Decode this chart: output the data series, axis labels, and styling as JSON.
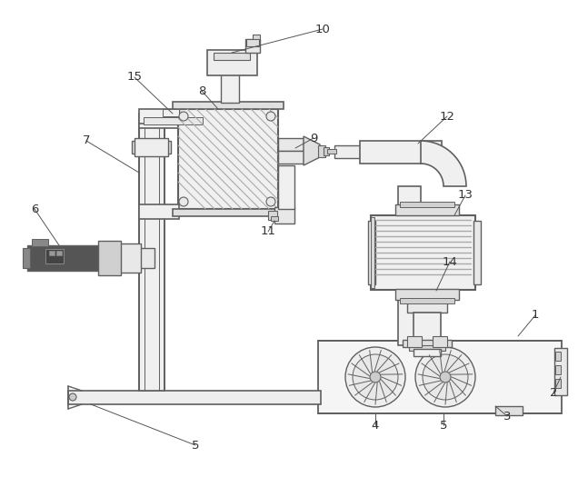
{
  "background_color": "#ffffff",
  "line_color": "#606060",
  "label_color": "#333333",
  "fig_width": 6.36,
  "fig_height": 5.25,
  "dpi": 100
}
